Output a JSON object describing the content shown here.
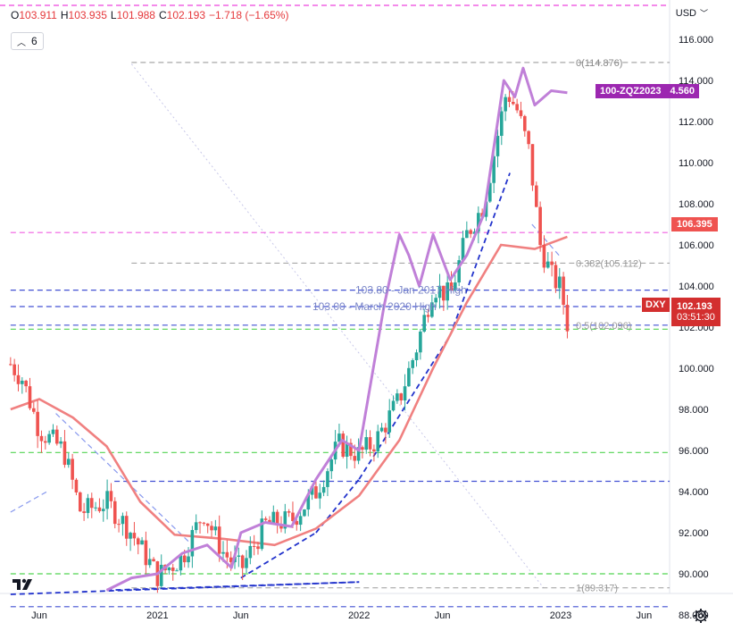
{
  "header": {
    "open_label": "O",
    "open": "103.911",
    "high_label": "H",
    "high": "103.935",
    "low_label": "L",
    "low": "101.988",
    "close_label": "C",
    "close": "102.193",
    "change": "−1.718 (−1.65%)",
    "indicator_count": "6",
    "currency": "USD"
  },
  "tags": {
    "zq_label": "100-ZQZ2023",
    "zq_value": "4.560",
    "ma_value": "106.395",
    "dxy_label": "DXY",
    "dxy_price": "102.193",
    "dxy_timer": "03:51:30"
  },
  "annotations": {
    "fib_0": "0(114.876)",
    "fib_382": "0.382(105.112)",
    "fib_5": "0.5(102.096)",
    "fib_1": "1(89.317)",
    "jan_high": "103.80 - Jan 2017 High",
    "mar_high": "103.00 - March 2020 High"
  },
  "colors": {
    "up": "#26a69a",
    "down": "#ef5350",
    "ma": "#f08080",
    "zq": "#c080d8",
    "blue_dash": "#2233cc",
    "green_dash": "#33cc33",
    "magenta_dash": "#ee44dd",
    "gray_dash": "#999999"
  },
  "chart_data": {
    "type": "candlestick",
    "symbol": "DXY",
    "timeframe": "weekly",
    "ylim": [
      87.5,
      116.8
    ],
    "y_ticks": [
      88,
      90,
      92,
      94,
      96,
      98,
      100,
      102,
      104,
      106,
      108,
      110,
      112,
      114,
      116
    ],
    "y_tick_labels": [
      "88.000",
      "90.000",
      "92.000",
      "94.000",
      "96.000",
      "98.000",
      "100.000",
      "102.000",
      "104.000",
      "106.000",
      "108.000",
      "110.000",
      "112.000",
      "114.000",
      "116.000"
    ],
    "x_range": [
      "2020-04-10",
      "2023-07-10"
    ],
    "x_ticks": [
      "2020-06-01",
      "2021-01-01",
      "2021-06-01",
      "2022-01-01",
      "2022-06-01",
      "2023-01-01",
      "2023-06-01"
    ],
    "x_tick_labels": [
      "Jun",
      "2021",
      "Jun",
      "2022",
      "Jun",
      "2023",
      "Jun"
    ],
    "close_path": [
      [
        "2020-04-10",
        100.2
      ],
      [
        "2020-05-01",
        99.5
      ],
      [
        "2020-06-01",
        97.0
      ],
      [
        "2020-07-15",
        96.0
      ],
      [
        "2020-08-15",
        93.0
      ],
      [
        "2020-10-01",
        93.5
      ],
      [
        "2020-11-15",
        92.0
      ],
      [
        "2021-01-01",
        89.9
      ],
      [
        "2021-02-15",
        90.8
      ],
      [
        "2021-03-25",
        93.0
      ],
      [
        "2021-05-01",
        91.0
      ],
      [
        "2021-06-01",
        90.2
      ],
      [
        "2021-07-15",
        92.4
      ],
      [
        "2021-09-01",
        92.6
      ],
      [
        "2021-10-15",
        94.0
      ],
      [
        "2021-11-25",
        96.3
      ],
      [
        "2022-01-01",
        95.8
      ],
      [
        "2022-02-01",
        96.5
      ],
      [
        "2022-03-15",
        98.5
      ],
      [
        "2022-04-15",
        101.0
      ],
      [
        "2022-05-15",
        104.0
      ],
      [
        "2022-06-15",
        103.5
      ],
      [
        "2022-07-15",
        106.5
      ],
      [
        "2022-08-15",
        108.0
      ],
      [
        "2022-09-25",
        113.5
      ],
      [
        "2022-10-15",
        112.5
      ],
      [
        "2022-11-05",
        110.5
      ],
      [
        "2022-11-25",
        106.0
      ],
      [
        "2022-12-15",
        104.5
      ],
      [
        "2023-01-01",
        103.9
      ],
      [
        "2023-01-13",
        102.193
      ]
    ],
    "ma_series": [
      [
        "2020-04-10",
        98.0
      ],
      [
        "2020-06-01",
        98.5
      ],
      [
        "2020-08-01",
        97.6
      ],
      [
        "2020-10-01",
        96.2
      ],
      [
        "2020-12-01",
        93.5
      ],
      [
        "2021-02-01",
        91.9
      ],
      [
        "2021-05-01",
        91.7
      ],
      [
        "2021-08-01",
        91.4
      ],
      [
        "2021-10-15",
        92.2
      ],
      [
        "2022-01-01",
        93.8
      ],
      [
        "2022-03-15",
        96.5
      ],
      [
        "2022-05-15",
        100.0
      ],
      [
        "2022-07-15",
        103.2
      ],
      [
        "2022-09-15",
        106.0
      ],
      [
        "2022-11-15",
        105.8
      ],
      [
        "2023-01-13",
        106.395
      ]
    ],
    "zq_series": [
      [
        "2020-10-01",
        89.2
      ],
      [
        "2020-11-15",
        89.8
      ],
      [
        "2021-01-01",
        90.0
      ],
      [
        "2021-02-15",
        91.0
      ],
      [
        "2021-04-01",
        91.4
      ],
      [
        "2021-05-15",
        90.3
      ],
      [
        "2021-06-01",
        92.0
      ],
      [
        "2021-07-15",
        92.5
      ],
      [
        "2021-09-01",
        92.3
      ],
      [
        "2021-10-15",
        94.6
      ],
      [
        "2021-12-01",
        96.5
      ],
      [
        "2022-01-01",
        96.0
      ],
      [
        "2022-02-15",
        103.0
      ],
      [
        "2022-03-15",
        106.5
      ],
      [
        "2022-04-01",
        105.5
      ],
      [
        "2022-04-20",
        104.0
      ],
      [
        "2022-05-15",
        106.5
      ],
      [
        "2022-06-15",
        104.3
      ],
      [
        "2022-07-15",
        105.5
      ],
      [
        "2022-08-15",
        107.5
      ],
      [
        "2022-09-20",
        114.0
      ],
      [
        "2022-10-10",
        113.2
      ],
      [
        "2022-10-25",
        114.6
      ],
      [
        "2022-11-15",
        112.8
      ],
      [
        "2022-12-15",
        113.5
      ],
      [
        "2023-01-13",
        113.4
      ]
    ],
    "horizontal_levels": [
      {
        "price": 114.876,
        "style": "gray",
        "from": "2020-11-15"
      },
      {
        "price": 106.6,
        "style": "magenta",
        "from": "2020-04-10"
      },
      {
        "price": 105.112,
        "style": "gray",
        "from": "2020-11-15"
      },
      {
        "price": 103.8,
        "style": "blue",
        "from": "2020-04-10"
      },
      {
        "price": 103.0,
        "style": "blue",
        "from": "2020-04-10"
      },
      {
        "price": 102.096,
        "style": "blue",
        "from": "2020-04-10"
      },
      {
        "price": 101.9,
        "style": "green",
        "from": "2020-04-10"
      },
      {
        "price": 95.9,
        "style": "green",
        "from": "2020-04-10"
      },
      {
        "price": 94.5,
        "style": "blue",
        "from": "2020-10-15"
      },
      {
        "price": 90.0,
        "style": "green",
        "from": "2020-04-10"
      },
      {
        "price": 89.317,
        "style": "gray",
        "from": "2020-11-15"
      },
      {
        "price": 88.4,
        "style": "blue",
        "from": "2020-04-10"
      }
    ],
    "trendlines": [
      {
        "from": [
          "2020-04-10",
          89.0
        ],
        "to": [
          "2022-01-01",
          89.6
        ],
        "color": "blue"
      },
      {
        "from": [
          "2020-10-01",
          89.2
        ],
        "to": [
          "2022-01-01",
          89.6
        ],
        "color": "blue"
      },
      {
        "from": [
          "2021-06-01",
          89.8
        ],
        "to": [
          "2021-10-15",
          92.0
        ],
        "color": "blue"
      },
      {
        "from": [
          "2021-10-15",
          92.0
        ],
        "to": [
          "2022-01-01",
          94.6
        ],
        "color": "blue"
      },
      {
        "from": [
          "2022-01-01",
          94.6
        ],
        "to": [
          "2022-06-15",
          101.6
        ],
        "color": "blue"
      },
      {
        "from": [
          "2022-06-15",
          101.6
        ],
        "to": [
          "2022-10-01",
          109.5
        ],
        "color": "blue"
      },
      {
        "from": [
          "2020-04-10",
          93.0
        ],
        "to": [
          "2020-06-15",
          94.0
        ],
        "color": "lightblue"
      },
      {
        "from": [
          "2020-07-01",
          97.8
        ],
        "to": [
          "2021-03-01",
          91.5
        ],
        "color": "lightblue"
      },
      {
        "from": [
          "2022-11-10",
          107.0
        ],
        "to": [
          "2023-01-01",
          105.4
        ],
        "color": "lightblue"
      }
    ]
  }
}
